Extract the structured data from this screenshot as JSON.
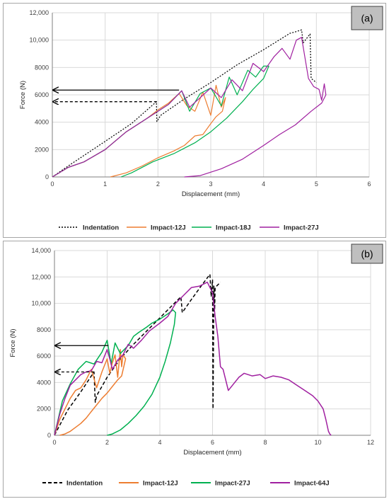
{
  "chart_data": [
    {
      "type": "line",
      "panel_label": "(a)",
      "xlabel": "Displacement (mm)",
      "ylabel": "Force (N)",
      "xlim": [
        0,
        6
      ],
      "ylim": [
        0,
        12000
      ],
      "xticks": [
        0,
        1,
        2,
        3,
        4,
        5,
        6
      ],
      "yticks": [
        0,
        2000,
        4000,
        6000,
        8000,
        10000,
        12000
      ],
      "ytick_labels": [
        "0",
        "2000",
        "4000",
        "6000",
        "8000",
        "10,000",
        "12,000"
      ],
      "grid": true,
      "legend_position": "bottom",
      "arrows": [
        {
          "style": "solid",
          "y": 6350,
          "x_from": 2.4,
          "x_to": 0.0
        },
        {
          "style": "dashed",
          "y": 5500,
          "x_from": 1.98,
          "x_to": 0.0
        }
      ],
      "series": [
        {
          "name": "Indentation",
          "color": "#000000",
          "dash": "dotted",
          "x": [
            0,
            0.3,
            1.0,
            1.5,
            1.97,
            1.98,
            2.05,
            2.5,
            3.0,
            3.5,
            4.0,
            4.5,
            4.6,
            4.72,
            4.75,
            4.88,
            4.9,
            5.0
          ],
          "y": [
            0,
            800,
            2600,
            3900,
            5500,
            4050,
            4500,
            5700,
            6900,
            8200,
            9300,
            10500,
            10600,
            10750,
            9800,
            10450,
            7200,
            6900
          ]
        },
        {
          "name": "Impact-12J",
          "color": "#ed7d31",
          "dash": "solid",
          "x": [
            0,
            0.3,
            0.6,
            1.0,
            1.4,
            1.8,
            2.0,
            2.2,
            2.4,
            2.55,
            2.7,
            2.85,
            3.0,
            3.1,
            3.2,
            3.28,
            3.22,
            3.1,
            3.0,
            2.85,
            2.7,
            2.5,
            2.3,
            2.0,
            1.7,
            1.4,
            1.1
          ],
          "y": [
            0,
            700,
            1100,
            2000,
            3300,
            4300,
            4900,
            5400,
            6100,
            5200,
            4800,
            6200,
            4500,
            6700,
            5100,
            5800,
            4800,
            4400,
            3900,
            3100,
            3000,
            2300,
            1900,
            1400,
            800,
            300,
            0
          ]
        },
        {
          "name": "Impact-18J",
          "color": "#00b050",
          "dash": "solid",
          "x": [
            0,
            0.3,
            0.6,
            1.0,
            1.4,
            1.8,
            2.2,
            2.45,
            2.6,
            2.8,
            3.0,
            3.2,
            3.35,
            3.5,
            3.7,
            3.85,
            4.0,
            4.1,
            4.0,
            3.8,
            3.6,
            3.3,
            3.0,
            2.7,
            2.3,
            1.9,
            1.5,
            1.3
          ],
          "y": [
            0,
            700,
            1100,
            2000,
            3300,
            4300,
            5300,
            6300,
            4800,
            6100,
            6500,
            5200,
            7300,
            6000,
            7800,
            7300,
            8100,
            8100,
            7200,
            6400,
            5500,
            4300,
            3300,
            2500,
            1700,
            1100,
            300,
            0
          ]
        },
        {
          "name": "Impact-27J",
          "color": "#a020a0",
          "dash": "solid",
          "x": [
            0,
            0.3,
            0.6,
            1.0,
            1.4,
            1.8,
            2.2,
            2.45,
            2.6,
            2.8,
            3.0,
            3.2,
            3.4,
            3.6,
            3.8,
            4.0,
            4.2,
            4.35,
            4.5,
            4.62,
            4.72,
            4.85,
            4.95,
            5.05,
            5.1,
            5.15,
            5.18,
            5.1,
            4.9,
            4.6,
            4.3,
            4.0,
            3.6,
            3.2,
            2.8,
            2.5
          ],
          "y": [
            0,
            700,
            1100,
            2000,
            3300,
            4300,
            5300,
            6300,
            5100,
            5800,
            6500,
            5800,
            7100,
            6300,
            8300,
            7700,
            8800,
            9400,
            8600,
            10000,
            10200,
            7200,
            6600,
            6400,
            5600,
            6800,
            6000,
            5400,
            4800,
            3800,
            3100,
            2300,
            1300,
            600,
            100,
            0
          ]
        }
      ]
    },
    {
      "type": "line",
      "panel_label": "(b)",
      "xlabel": "Displacement (mm)",
      "ylabel": "Force (N)",
      "xlim": [
        0,
        12
      ],
      "ylim": [
        0,
        14000
      ],
      "xticks": [
        0,
        2,
        4,
        6,
        8,
        10,
        12
      ],
      "yticks": [
        0,
        2000,
        4000,
        6000,
        8000,
        10000,
        12000,
        14000
      ],
      "ytick_labels": [
        "0",
        "2000",
        "4000",
        "6000",
        "8000",
        "10,000",
        "12,000",
        "14,000"
      ],
      "grid": true,
      "legend_position": "bottom",
      "arrows": [
        {
          "style": "solid",
          "y": 6800,
          "x_from": 2.05,
          "x_to": 0.0
        },
        {
          "style": "dashed",
          "y": 4800,
          "x_from": 1.5,
          "x_to": 0.0
        }
      ],
      "series": [
        {
          "name": "Indentation",
          "color": "#000000",
          "dash": "dashed",
          "x": [
            0,
            0.5,
            1.0,
            1.5,
            1.55,
            1.6,
            2.0,
            2.5,
            3.0,
            3.5,
            4.0,
            4.5,
            4.8,
            4.85,
            5.2,
            5.6,
            5.9,
            5.95,
            6.0,
            6.02,
            6.05,
            6.08,
            6.1,
            6.15,
            6.3
          ],
          "y": [
            0,
            1900,
            3300,
            4800,
            2500,
            3000,
            4400,
            5800,
            6900,
            7900,
            8900,
            9900,
            10500,
            9300,
            10300,
            11400,
            12200,
            10500,
            11800,
            2000,
            11300,
            9500,
            11200,
            11300,
            11600
          ]
        },
        {
          "name": "Impact-12J",
          "color": "#ed7d31",
          "dash": "solid",
          "x": [
            0,
            0.2,
            0.4,
            0.6,
            0.8,
            1.0,
            1.2,
            1.4,
            1.6,
            1.8,
            2.0,
            2.1,
            2.2,
            2.3,
            2.4,
            2.5,
            2.55,
            2.6,
            2.7,
            2.55,
            2.4,
            2.2,
            2.0,
            1.8,
            1.6,
            1.4,
            1.2,
            1.0,
            0.8,
            0.6,
            0.4,
            0.2
          ],
          "y": [
            0,
            1200,
            2000,
            2800,
            3400,
            3600,
            4200,
            5000,
            3600,
            4800,
            5800,
            4700,
            5500,
            6100,
            4400,
            6500,
            5200,
            6100,
            5800,
            4500,
            4200,
            3700,
            3200,
            2800,
            2300,
            1800,
            1300,
            900,
            600,
            300,
            100,
            0
          ]
        },
        {
          "name": "Impact-27J",
          "color": "#00b050",
          "dash": "solid",
          "x": [
            0,
            0.3,
            0.6,
            0.9,
            1.2,
            1.5,
            1.8,
            2.0,
            2.15,
            2.3,
            2.5,
            2.8,
            3.0,
            3.2,
            3.5,
            3.7,
            4.0,
            4.3,
            4.5,
            4.6,
            4.55,
            4.4,
            4.2,
            4.0,
            3.7,
            3.4,
            3.1,
            2.8,
            2.5,
            2.2,
            2.0
          ],
          "y": [
            0,
            2600,
            3900,
            5000,
            5600,
            5400,
            6300,
            7200,
            5400,
            7000,
            6200,
            6800,
            7500,
            7800,
            8200,
            8500,
            8800,
            9200,
            9500,
            9300,
            8400,
            7000,
            5600,
            4400,
            3100,
            2200,
            1500,
            900,
            400,
            100,
            0
          ]
        },
        {
          "name": "Impact-64J",
          "color": "#a020a0",
          "dash": "solid",
          "x": [
            0,
            0.2,
            0.4,
            0.6,
            0.8,
            1.0,
            1.2,
            1.4,
            1.6,
            1.8,
            2.0,
            2.1,
            2.2,
            2.4,
            2.6,
            2.8,
            3.0,
            3.3,
            3.6,
            4.0,
            4.3,
            4.6,
            4.9,
            5.2,
            5.5,
            5.8,
            6.0,
            6.1,
            6.2,
            6.3,
            6.4,
            6.5,
            6.6,
            6.8,
            7.0,
            7.2,
            7.5,
            7.8,
            8.0,
            8.3,
            8.6,
            8.9,
            9.2,
            9.5,
            9.8,
            10.0,
            10.2,
            10.3,
            10.4,
            10.45,
            10.5
          ],
          "y": [
            0,
            1600,
            2800,
            3800,
            4200,
            4600,
            4800,
            4900,
            5600,
            5500,
            6500,
            5800,
            5000,
            5700,
            6100,
            6900,
            6600,
            7200,
            7900,
            8500,
            9000,
            10000,
            10600,
            11200,
            11300,
            11600,
            10800,
            9000,
            7500,
            5200,
            5000,
            4200,
            3400,
            3900,
            4400,
            4700,
            4500,
            4600,
            4300,
            4500,
            4400,
            4200,
            3800,
            3400,
            3000,
            2600,
            2000,
            1200,
            300,
            100,
            0
          ]
        }
      ]
    }
  ]
}
